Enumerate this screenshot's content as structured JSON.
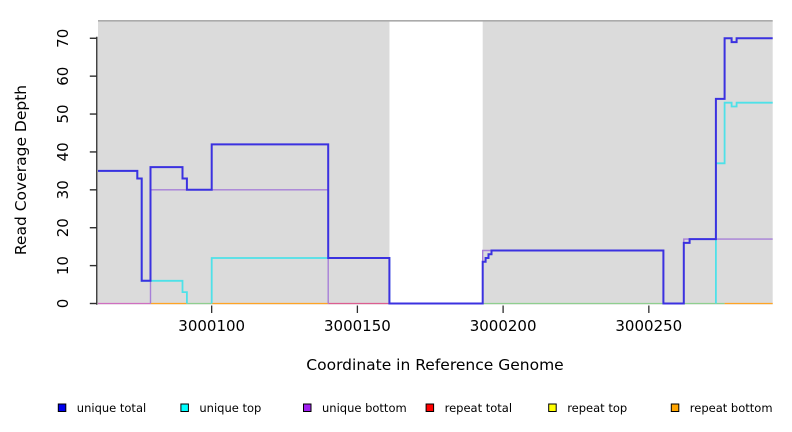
{
  "chart_data": {
    "type": "line",
    "style": "step",
    "title": "",
    "xlabel": "Coordinate in Reference Genome",
    "ylabel": "Read Coverage Depth",
    "x_range": [
      3000061,
      3000292.5
    ],
    "y_range": [
      0,
      74.6
    ],
    "x_ticks": [
      3000100,
      3000150,
      3000200,
      3000250
    ],
    "y_ticks": [
      0,
      10,
      20,
      30,
      40,
      50,
      60,
      70
    ],
    "grid": "off",
    "background": {
      "plot_fill": "#dbdbdb",
      "gap_fill": "#ffffff",
      "top_rule_color": "#ababab"
    },
    "coverage_gap": {
      "start": 3000161,
      "end": 3000193
    },
    "series": [
      {
        "name": "unique total",
        "color": "#3b31e0",
        "width": 2,
        "segments": [
          [
            [
              3000061,
              35
            ],
            [
              3000074.5,
              35
            ],
            [
              3000074.5,
              33
            ],
            [
              3000076,
              33
            ],
            [
              3000076,
              6
            ],
            [
              3000079,
              6
            ],
            [
              3000079,
              36
            ],
            [
              3000090,
              36
            ],
            [
              3000090,
              33
            ],
            [
              3000091.5,
              33
            ],
            [
              3000091.5,
              30
            ],
            [
              3000100,
              30
            ],
            [
              3000100,
              42
            ],
            [
              3000140,
              42
            ],
            [
              3000140,
              12
            ],
            [
              3000161,
              12
            ],
            [
              3000161,
              0
            ],
            [
              3000193,
              0
            ],
            [
              3000193,
              11
            ],
            [
              3000194,
              11
            ],
            [
              3000194,
              12
            ],
            [
              3000195,
              12
            ],
            [
              3000195,
              13
            ],
            [
              3000196,
              13
            ],
            [
              3000196,
              14
            ],
            [
              3000255,
              14
            ],
            [
              3000255,
              0
            ],
            [
              3000262,
              0
            ],
            [
              3000262,
              16
            ],
            [
              3000264,
              16
            ],
            [
              3000264,
              17
            ],
            [
              3000273,
              17
            ],
            [
              3000273,
              54
            ],
            [
              3000276,
              54
            ],
            [
              3000276,
              70
            ],
            [
              3000278.4,
              70
            ],
            [
              3000278.4,
              69
            ],
            [
              3000280.1,
              69
            ],
            [
              3000280.1,
              70
            ],
            [
              3000292.5,
              70
            ]
          ]
        ]
      },
      {
        "name": "unique top",
        "color": "#4ee1e8",
        "width": 1.8,
        "segments": [
          [
            [
              3000061,
              35
            ],
            [
              3000074.5,
              35
            ],
            [
              3000074.5,
              33
            ],
            [
              3000076,
              33
            ],
            [
              3000076,
              6
            ],
            [
              3000090,
              6
            ],
            [
              3000090,
              3
            ],
            [
              3000091.5,
              3
            ],
            [
              3000091.5,
              0
            ]
          ],
          [
            [
              3000100,
              0
            ],
            [
              3000100,
              12
            ],
            [
              3000161,
              12
            ],
            [
              3000161,
              0
            ]
          ],
          [
            [
              3000273,
              0
            ],
            [
              3000273,
              37
            ],
            [
              3000276,
              37
            ],
            [
              3000276,
              53
            ],
            [
              3000278.4,
              53
            ],
            [
              3000278.4,
              52
            ],
            [
              3000280.1,
              52
            ],
            [
              3000280.1,
              53
            ],
            [
              3000292.5,
              53
            ]
          ]
        ]
      },
      {
        "name": "unique bottom",
        "color": "#a77fd8",
        "width": 1.4,
        "segments": [
          [
            [
              3000079,
              0
            ],
            [
              3000079,
              30
            ],
            [
              3000140,
              30
            ],
            [
              3000140,
              0
            ]
          ],
          [
            [
              3000193,
              0
            ],
            [
              3000193,
              14
            ],
            [
              3000255,
              14
            ],
            [
              3000255,
              0
            ]
          ],
          [
            [
              3000262,
              0
            ],
            [
              3000262,
              17
            ],
            [
              3000292.5,
              17
            ]
          ]
        ]
      },
      {
        "name": "repeat total",
        "color": "#ff0000",
        "width": 1.3,
        "value_throughout": 0,
        "segments": []
      },
      {
        "name": "repeat top",
        "color": "#ffff00",
        "width": 1.3,
        "value_throughout": 0,
        "segments": []
      },
      {
        "name": "repeat bottom",
        "color": "#ffa500",
        "width": 1.3,
        "value_throughout": 0,
        "segments": []
      }
    ],
    "baseline_segments": [
      {
        "from": 3000061,
        "to": 3000079,
        "color": "#cf6fc0"
      },
      {
        "from": 3000079,
        "to": 3000091.5,
        "color": "#ffa424"
      },
      {
        "from": 3000091.5,
        "to": 3000100,
        "color": "#8fcf8f"
      },
      {
        "from": 3000100,
        "to": 3000140,
        "color": "#ffa424"
      },
      {
        "from": 3000140,
        "to": 3000161,
        "color": "#dc5e90"
      },
      {
        "from": 3000193,
        "to": 3000255,
        "color": "#8fcf8f"
      },
      {
        "from": 3000262,
        "to": 3000276,
        "color": "#8fcf8f"
      },
      {
        "from": 3000276,
        "to": 3000292.5,
        "color": "#ffa424"
      }
    ],
    "legend": {
      "position": "bottom",
      "entries": [
        {
          "label": "unique total",
          "color": "#0000ee"
        },
        {
          "label": "unique top",
          "color": "#00ffff"
        },
        {
          "label": "unique bottom",
          "color": "#a020f0"
        },
        {
          "label": "repeat total",
          "color": "#ff0000"
        },
        {
          "label": "repeat top",
          "color": "#ffff00"
        },
        {
          "label": "repeat bottom",
          "color": "#ffa500"
        }
      ]
    }
  }
}
